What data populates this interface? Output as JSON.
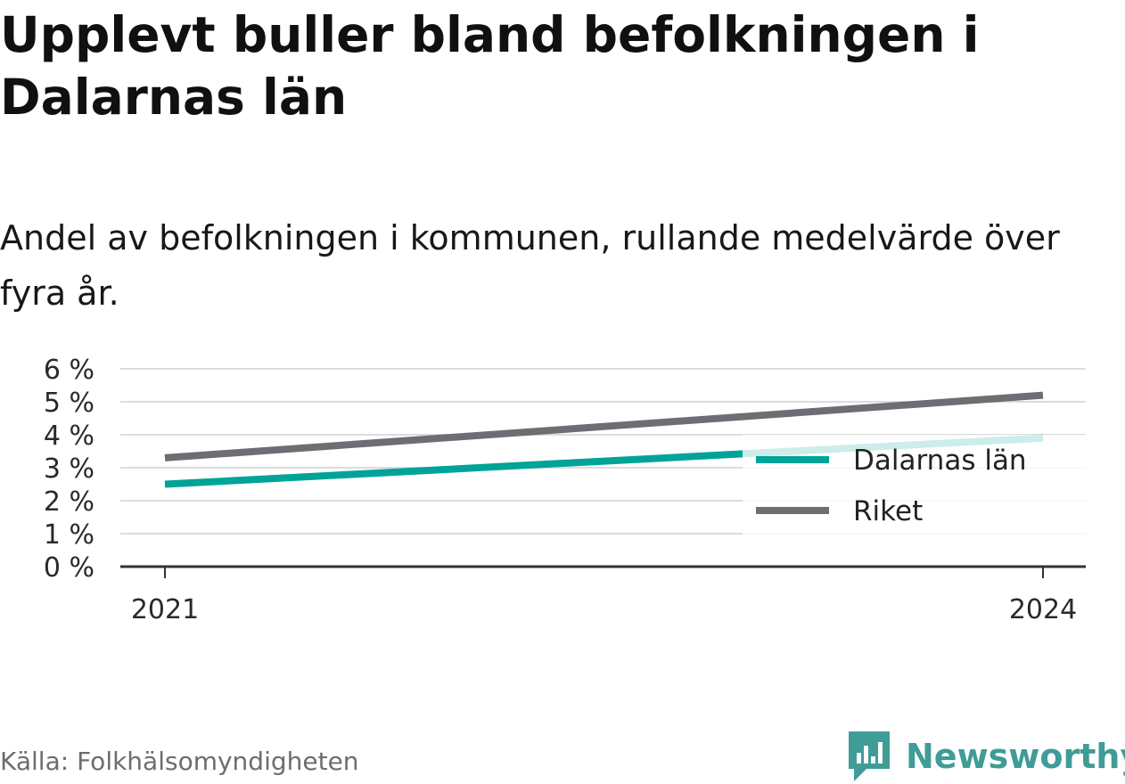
{
  "title": "Upplevt buller bland befolkningen i Dalarnas län",
  "subtitle": "Andel av befolkningen i kommunen, rullande medelvärde över fyra år.",
  "source": "Källa: Folkhälsomyndigheten",
  "brand": "Newsworthy",
  "colors": {
    "dalarnas": "#00a398",
    "riket": "#6e6d73",
    "grid": "#dcdcdc",
    "axis": "#333333",
    "brand": "#3f9c97"
  },
  "chart_data": {
    "type": "line",
    "x": [
      2021,
      2024
    ],
    "x_tick_labels": [
      "2021",
      "2024"
    ],
    "y_ticks": [
      0,
      1,
      2,
      3,
      4,
      5,
      6
    ],
    "y_tick_labels": [
      "0 %",
      "1 %",
      "2 %",
      "3 %",
      "4 %",
      "5 %",
      "6 %"
    ],
    "ylim": [
      0,
      6
    ],
    "grid": true,
    "legend_position": "bottom-right",
    "series": [
      {
        "name": "Dalarnas län",
        "key": "dalarnas",
        "values": [
          2.5,
          3.9
        ]
      },
      {
        "name": "Riket",
        "key": "riket",
        "values": [
          3.3,
          5.2
        ]
      }
    ]
  }
}
